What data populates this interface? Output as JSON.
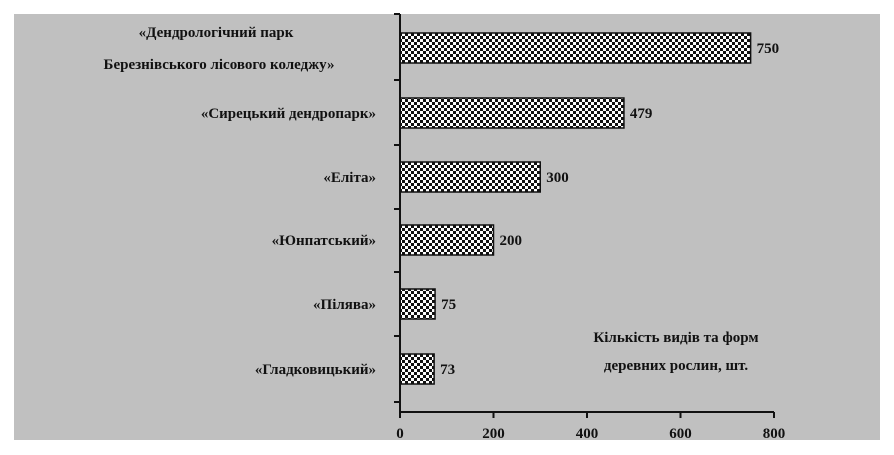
{
  "colors": {
    "background": "#ffffff",
    "plot_area": "#c0c0c0",
    "bar_dark": "#111111",
    "bar_light": "#ffffff",
    "axis": "#111111"
  },
  "chart_data": {
    "type": "bar",
    "orientation": "horizontal",
    "categories": [
      [
        "«Дендрологічний парк",
        "Березнівського лісового коледжу»"
      ],
      [
        "«Сирецький дендропарк»"
      ],
      [
        "«Еліта»"
      ],
      [
        "«Юнпатський»"
      ],
      [
        "«Пілява»"
      ],
      [
        "«Гладковицький»"
      ]
    ],
    "values": [
      750,
      479,
      300,
      200,
      75,
      73
    ],
    "value_labels": [
      "750",
      "479",
      "300",
      "200",
      "75",
      "73"
    ],
    "xlim": [
      0,
      800
    ],
    "xticks": [
      0,
      200,
      400,
      600,
      800
    ],
    "xtick_labels": [
      "0",
      "200",
      "400",
      "600",
      "800"
    ],
    "annotation": [
      "Кількість видів та форм",
      "деревних рослин, шт."
    ],
    "bar_pattern": "checkerboard",
    "grid": false,
    "legend": "none"
  }
}
